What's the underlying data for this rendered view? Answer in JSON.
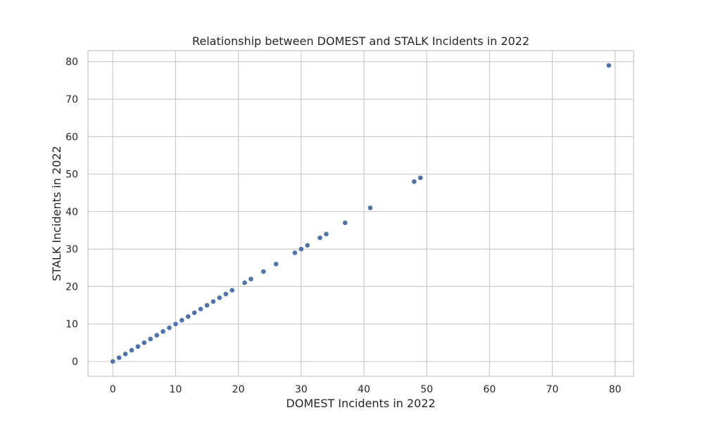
{
  "chart_data": {
    "type": "scatter",
    "title": "Relationship between DOMEST and STALK Incidents in 2022",
    "xlabel": "DOMEST Incidents in 2022",
    "ylabel": "STALK Incidents in 2022",
    "xlim": [
      -3.95,
      82.95
    ],
    "ylim": [
      -3.95,
      82.95
    ],
    "xticks": [
      0,
      10,
      20,
      30,
      40,
      50,
      60,
      70,
      80
    ],
    "yticks": [
      0,
      10,
      20,
      30,
      40,
      50,
      60,
      70,
      80
    ],
    "grid": true,
    "point_color": "#4c72b0",
    "x": [
      0,
      1,
      2,
      3,
      4,
      5,
      6,
      7,
      8,
      9,
      10,
      11,
      12,
      13,
      14,
      15,
      16,
      17,
      18,
      19,
      21,
      22,
      24,
      26,
      29,
      30,
      31,
      33,
      34,
      37,
      41,
      48,
      49,
      79
    ],
    "y": [
      0,
      1,
      2,
      3,
      4,
      5,
      6,
      7,
      8,
      9,
      10,
      11,
      12,
      13,
      14,
      15,
      16,
      17,
      18,
      19,
      21,
      22,
      24,
      26,
      29,
      30,
      31,
      33,
      34,
      37,
      41,
      48,
      49,
      79
    ]
  }
}
